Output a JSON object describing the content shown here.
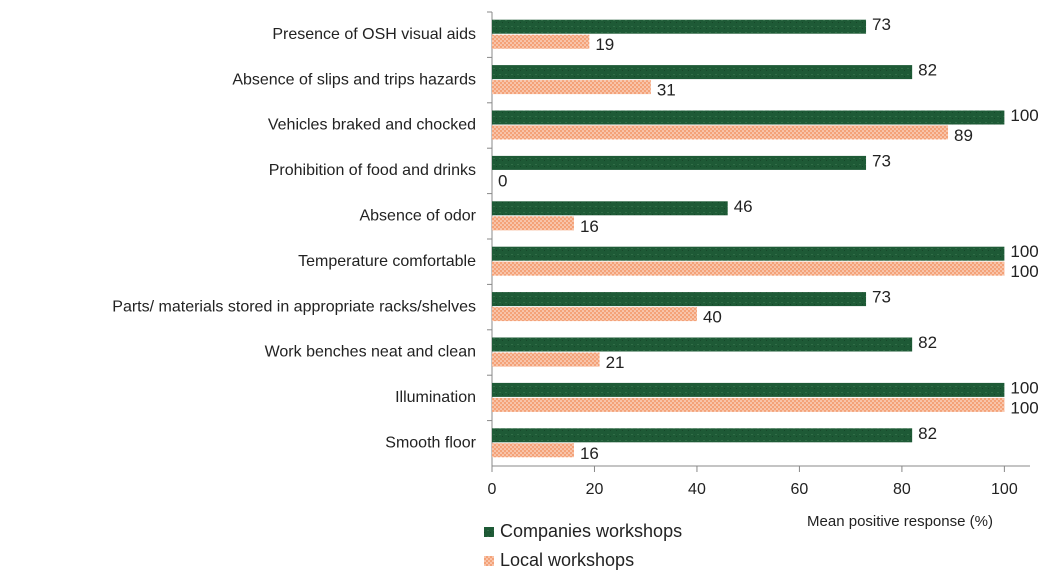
{
  "chart_data": {
    "type": "hbar",
    "xlabel": "Mean positive response (%)",
    "categories": [
      "Presence of OSH visual aids",
      "Absence of slips and trips hazards",
      "Vehicles braked and chocked",
      "Prohibition of food and drinks",
      "Absence of odor",
      "Temperature comfortable",
      "Parts/ materials stored in appropriate racks/shelves",
      "Work benches neat and clean",
      "Illumination",
      "Smooth  floor"
    ],
    "series": [
      {
        "name": "Companies workshops",
        "color": "#1e5a36",
        "values": [
          73,
          82,
          100,
          73,
          46,
          100,
          73,
          82,
          100,
          82
        ]
      },
      {
        "name": "Local workshops",
        "color": "#f4a278",
        "values": [
          19,
          31,
          89,
          0,
          16,
          100,
          40,
          21,
          100,
          16
        ]
      }
    ],
    "xlim": [
      0,
      105
    ],
    "xticks": [
      0,
      20,
      40,
      60,
      80,
      100
    ]
  }
}
